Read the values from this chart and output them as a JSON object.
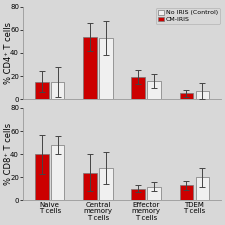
{
  "categories": [
    "Naive\nT cells",
    "Central\nmemory\nT cells",
    "Effector\nmemory\nT cells",
    "TDEM\nT cells"
  ],
  "top_panel": {
    "ylabel": "% CD4⁺ T cells",
    "ylim": [
      0,
      80
    ],
    "yticks": [
      0,
      20,
      40,
      60,
      80
    ],
    "no_iris_values": [
      15,
      53,
      16,
      7
    ],
    "no_iris_errors": [
      13,
      15,
      6,
      7
    ],
    "cm_iris_values": [
      15,
      54,
      19,
      5
    ],
    "cm_iris_errors": [
      9,
      12,
      6,
      3
    ]
  },
  "bottom_panel": {
    "ylabel": "% CD8⁺ T cells",
    "ylim": [
      0,
      80
    ],
    "yticks": [
      0,
      20,
      40,
      60,
      80
    ],
    "no_iris_values": [
      48,
      28,
      12,
      20
    ],
    "no_iris_errors": [
      8,
      14,
      4,
      8
    ],
    "cm_iris_values": [
      40,
      24,
      10,
      13
    ],
    "cm_iris_errors": [
      17,
      16,
      3,
      4
    ]
  },
  "bar_width": 0.28,
  "bar_gap": 0.05,
  "colors": {
    "no_iris": "#f0f0f0",
    "cm_iris": "#cc0000"
  },
  "edge_color": "#777777",
  "error_color": "#555555",
  "legend_labels": [
    "No IRIS (Control)",
    "CM-IRIS"
  ],
  "background_color": "#d8d8d8",
  "plot_bg": "#d8d8d8",
  "tick_fontsize": 5.0,
  "label_fontsize": 6.0
}
